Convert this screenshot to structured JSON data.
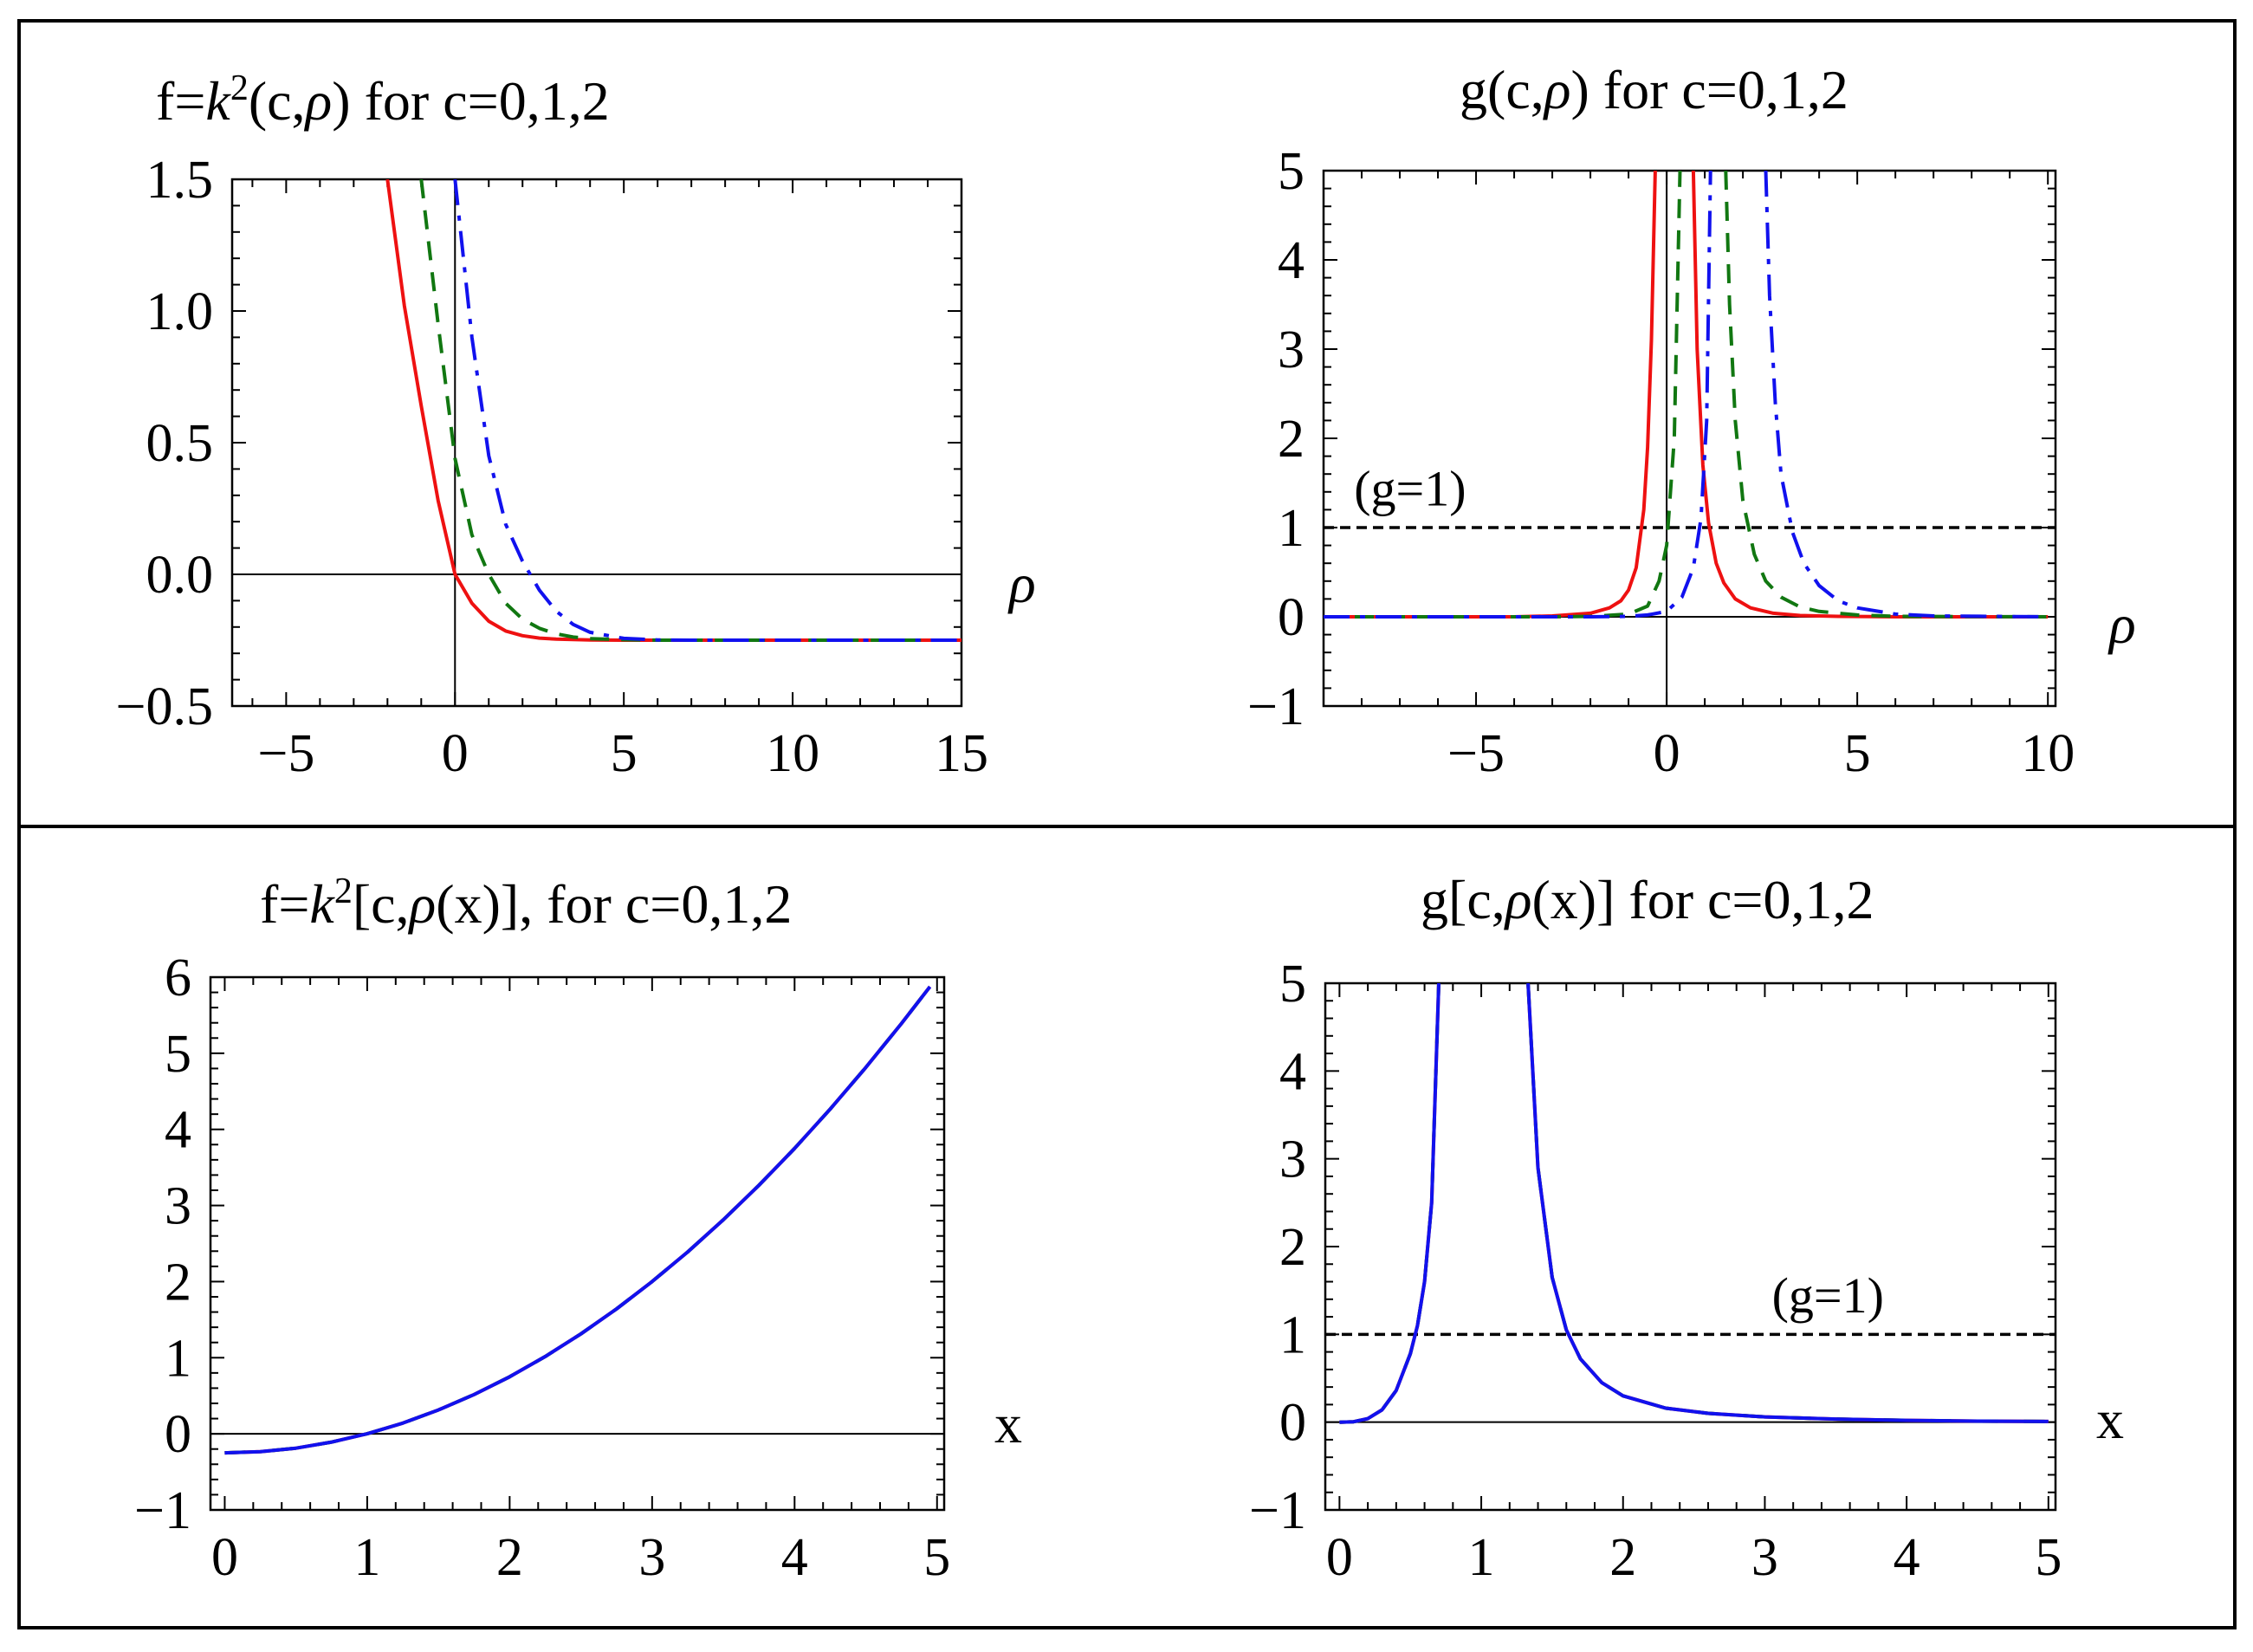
{
  "chart_data": [
    {
      "id": "p1",
      "type": "line",
      "title": "f=k²(c,ρ)  for c=0,1,2",
      "title_parts": {
        "lhs": "f=",
        "k": "k",
        "sup": "2",
        "rest": "(c,",
        "rho": "ρ",
        "tail": ")  for c=0,1,2"
      },
      "xlabel": "ρ",
      "xlim": [
        -6.6,
        15.0
      ],
      "ylim": [
        -0.5,
        1.5
      ],
      "xticks": [
        -5,
        0,
        5,
        10,
        15
      ],
      "xtick_labels": [
        "−5",
        "0",
        "5",
        "10",
        "15"
      ],
      "yticks": [
        -0.5,
        0.0,
        0.5,
        1.0,
        1.5
      ],
      "ytick_labels": [
        "−0.5",
        "0.0",
        "0.5",
        "1.0",
        "1.5"
      ],
      "series": [
        {
          "name": "c=0",
          "color": "#ee1111",
          "dash": "solid",
          "x": [
            -2.0,
            -1.5,
            -1.0,
            -0.5,
            0.0,
            0.5,
            1.0,
            1.5,
            2.0,
            2.5,
            3.0,
            4.0,
            5.0,
            7.0,
            10.0,
            15.0
          ],
          "values": [
            1.5,
            1.02,
            0.64,
            0.28,
            0.0,
            -0.11,
            -0.178,
            -0.215,
            -0.233,
            -0.242,
            -0.246,
            -0.249,
            -0.25,
            -0.25,
            -0.25,
            -0.25
          ]
        },
        {
          "name": "c=1",
          "color": "#117711",
          "dash": "dashed",
          "x": [
            -1.0,
            -0.5,
            0.0,
            0.5,
            1.0,
            1.5,
            2.0,
            2.5,
            3.0,
            3.5,
            4.0,
            5.0,
            6.0,
            8.0,
            10.0,
            15.0
          ],
          "values": [
            1.5,
            0.95,
            0.44,
            0.15,
            0.0,
            -0.11,
            -0.17,
            -0.205,
            -0.226,
            -0.238,
            -0.244,
            -0.248,
            -0.25,
            -0.25,
            -0.25,
            -0.25
          ]
        },
        {
          "name": "c=2",
          "color": "#1111ee",
          "dash": "dashdot",
          "x": [
            0.0,
            0.5,
            1.0,
            1.5,
            2.0,
            2.5,
            3.0,
            3.5,
            4.0,
            5.0,
            6.0,
            7.0,
            8.0,
            10.0,
            15.0
          ],
          "values": [
            1.5,
            0.9,
            0.45,
            0.19,
            0.05,
            -0.06,
            -0.14,
            -0.19,
            -0.22,
            -0.243,
            -0.249,
            -0.25,
            -0.25,
            -0.25,
            -0.25
          ]
        }
      ]
    },
    {
      "id": "p2",
      "type": "line",
      "title": "g(c,ρ) for c=0,1,2",
      "title_parts": {
        "lhs": "g(c,",
        "rho": "ρ",
        "tail": ") for c=0,1,2"
      },
      "xlabel": "ρ",
      "xlim": [
        -9.0,
        10.2
      ],
      "ylim": [
        -1,
        5
      ],
      "xticks": [
        -5,
        0,
        5,
        10
      ],
      "xtick_labels": [
        "−5",
        "0",
        "5",
        "10"
      ],
      "yticks": [
        -1,
        0,
        1,
        2,
        3,
        4,
        5
      ],
      "ytick_labels": [
        "−1",
        "0",
        "1",
        "2",
        "3",
        "4",
        "5"
      ],
      "reference_line": {
        "y": 1,
        "label": "(g=1)",
        "label_x": -8.2,
        "label_y": 1.25
      },
      "series": [
        {
          "name": "c=0",
          "color": "#ee1111",
          "dash": "solid",
          "x": [
            -9.0,
            -4.0,
            -3.0,
            -2.0,
            -1.5,
            -1.2,
            -1.0,
            -0.8,
            -0.6,
            -0.5,
            -0.4,
            -0.3
          ],
          "values": [
            0.0,
            0.0,
            0.01,
            0.04,
            0.1,
            0.18,
            0.3,
            0.55,
            1.2,
            1.9,
            3.1,
            5.0
          ],
          "x2": [
            0.7,
            0.8,
            0.95,
            1.1,
            1.3,
            1.5,
            1.8,
            2.2,
            2.8,
            3.5,
            4.5,
            6.0,
            10.0
          ],
          "values2": [
            5.0,
            3.0,
            1.7,
            1.05,
            0.6,
            0.38,
            0.2,
            0.1,
            0.04,
            0.015,
            0.005,
            0.0,
            0.0
          ]
        },
        {
          "name": "c=1",
          "color": "#117711",
          "dash": "dashed",
          "x": [
            -9.0,
            -3.0,
            -2.0,
            -1.0,
            -0.5,
            -0.2,
            0.0,
            0.2,
            0.35
          ],
          "values": [
            0.0,
            0.0,
            0.005,
            0.03,
            0.12,
            0.4,
            0.8,
            2.0,
            5.0
          ],
          "x2": [
            1.55,
            1.65,
            1.8,
            2.0,
            2.3,
            2.6,
            3.0,
            3.5,
            4.0,
            5.0,
            6.0,
            10.0
          ],
          "values2": [
            5.0,
            3.5,
            2.2,
            1.3,
            0.7,
            0.4,
            0.22,
            0.11,
            0.06,
            0.02,
            0.005,
            0.0
          ]
        },
        {
          "name": "c=2",
          "color": "#1111ee",
          "dash": "dashdot",
          "x": [
            -9.0,
            -2.0,
            -1.0,
            -0.5,
            0.0,
            0.4,
            0.7,
            0.9,
            1.05,
            1.15
          ],
          "values": [
            0.0,
            0.0,
            0.005,
            0.02,
            0.06,
            0.22,
            0.55,
            1.1,
            2.2,
            5.0
          ],
          "x2": [
            2.6,
            2.7,
            2.85,
            3.0,
            3.3,
            3.6,
            4.0,
            4.5,
            5.0,
            6.0,
            7.0,
            10.0
          ],
          "values2": [
            5.0,
            3.6,
            2.4,
            1.6,
            0.95,
            0.6,
            0.35,
            0.18,
            0.1,
            0.03,
            0.01,
            0.0
          ]
        }
      ]
    },
    {
      "id": "p3",
      "type": "line",
      "title": "f=k²[c,ρ(x)], for c=0,1,2",
      "title_parts": {
        "lhs": "f=",
        "k": "k",
        "sup": "2",
        "rest": "[c,",
        "rho": "ρ",
        "tail": "(x)], for c=0,1,2"
      },
      "xlabel": "x",
      "xlim": [
        -0.1,
        5.05
      ],
      "ylim": [
        -1,
        6
      ],
      "xticks": [
        0,
        1,
        2,
        3,
        4,
        5
      ],
      "xtick_labels": [
        "0",
        "1",
        "2",
        "3",
        "4",
        "5"
      ],
      "yticks": [
        -1,
        0,
        1,
        2,
        3,
        4,
        5,
        6
      ],
      "ytick_labels": [
        "−1",
        "0",
        "1",
        "2",
        "3",
        "4",
        "5",
        "6"
      ],
      "series": [
        {
          "name": "c=0",
          "color": "#ee1111",
          "dash": "solid",
          "x": [
            0,
            0.25,
            0.5,
            0.75,
            1,
            1.25,
            1.5,
            1.75,
            2,
            2.25,
            2.5,
            2.75,
            3,
            3.25,
            3.5,
            3.75,
            4,
            4.25,
            4.5,
            4.75,
            4.95
          ],
          "values": [
            -0.25,
            -0.234,
            -0.188,
            -0.109,
            0.0,
            0.141,
            0.313,
            0.516,
            0.75,
            1.016,
            1.313,
            1.641,
            2.0,
            2.391,
            2.813,
            3.266,
            3.75,
            4.266,
            4.813,
            5.391,
            5.875
          ]
        },
        {
          "name": "c=1",
          "color": "#117711",
          "dash": "dashed",
          "x": [
            0,
            0.25,
            0.5,
            0.75,
            1,
            1.25,
            1.5,
            1.75,
            2,
            2.25,
            2.5,
            2.75,
            3,
            3.25,
            3.5,
            3.75,
            4,
            4.25,
            4.5,
            4.75,
            4.95
          ],
          "values": [
            -0.25,
            -0.234,
            -0.188,
            -0.109,
            0.0,
            0.141,
            0.313,
            0.516,
            0.75,
            1.016,
            1.313,
            1.641,
            2.0,
            2.391,
            2.813,
            3.266,
            3.75,
            4.266,
            4.813,
            5.391,
            5.875
          ]
        },
        {
          "name": "c=2",
          "color": "#1111ee",
          "dash": "solid",
          "x": [
            0,
            0.25,
            0.5,
            0.75,
            1,
            1.25,
            1.5,
            1.75,
            2,
            2.25,
            2.5,
            2.75,
            3,
            3.25,
            3.5,
            3.75,
            4,
            4.25,
            4.5,
            4.75,
            4.95
          ],
          "values": [
            -0.25,
            -0.234,
            -0.188,
            -0.109,
            0.0,
            0.141,
            0.313,
            0.516,
            0.75,
            1.016,
            1.313,
            1.641,
            2.0,
            2.391,
            2.813,
            3.266,
            3.75,
            4.266,
            4.813,
            5.391,
            5.875
          ]
        }
      ]
    },
    {
      "id": "p4",
      "type": "line",
      "title": "g[c,ρ(x)] for c=0,1,2",
      "title_parts": {
        "lhs": "g[c,",
        "rho": "ρ",
        "tail": "(x)] for c=0,1,2"
      },
      "xlabel": "x",
      "xlim": [
        -0.1,
        5.05
      ],
      "ylim": [
        -1,
        5
      ],
      "xticks": [
        0,
        1,
        2,
        3,
        4,
        5
      ],
      "xtick_labels": [
        "0",
        "1",
        "2",
        "3",
        "4",
        "5"
      ],
      "yticks": [
        -1,
        0,
        1,
        2,
        3,
        4,
        5
      ],
      "ytick_labels": [
        "−1",
        "0",
        "1",
        "2",
        "3",
        "4",
        "5"
      ],
      "reference_line": {
        "y": 1,
        "label": "(g=1)",
        "label_x": 3.05,
        "label_y": 1.25
      },
      "series": [
        {
          "name": "c=0",
          "color": "#ee1111",
          "dash": "solid",
          "x": [
            0.0,
            0.1,
            0.2,
            0.3,
            0.4,
            0.5,
            0.55,
            0.6,
            0.65,
            0.7
          ],
          "values": [
            0.0,
            0.005,
            0.04,
            0.14,
            0.36,
            0.78,
            1.1,
            1.6,
            2.5,
            5.0
          ],
          "x2": [
            1.33,
            1.4,
            1.5,
            1.6,
            1.7,
            1.85,
            2.0,
            2.3,
            2.6,
            3.0,
            3.5,
            4.0,
            4.5,
            5.0
          ],
          "values2": [
            5.0,
            2.9,
            1.65,
            1.05,
            0.72,
            0.45,
            0.3,
            0.16,
            0.1,
            0.06,
            0.035,
            0.02,
            0.012,
            0.008
          ]
        },
        {
          "name": "c=1",
          "color": "#117711",
          "dash": "dashed",
          "x": [
            0.0,
            0.1,
            0.2,
            0.3,
            0.4,
            0.5,
            0.55,
            0.6,
            0.65,
            0.7
          ],
          "values": [
            0.0,
            0.005,
            0.04,
            0.14,
            0.36,
            0.78,
            1.1,
            1.6,
            2.5,
            5.0
          ],
          "x2": [
            1.33,
            1.4,
            1.5,
            1.6,
            1.7,
            1.85,
            2.0,
            2.3,
            2.6,
            3.0,
            3.5,
            4.0,
            4.5,
            5.0
          ],
          "values2": [
            5.0,
            2.9,
            1.65,
            1.05,
            0.72,
            0.45,
            0.3,
            0.16,
            0.1,
            0.06,
            0.035,
            0.02,
            0.012,
            0.008
          ]
        },
        {
          "name": "c=2",
          "color": "#1111ee",
          "dash": "solid",
          "x": [
            0.0,
            0.1,
            0.2,
            0.3,
            0.4,
            0.5,
            0.55,
            0.6,
            0.65,
            0.7
          ],
          "values": [
            0.0,
            0.005,
            0.04,
            0.14,
            0.36,
            0.78,
            1.1,
            1.6,
            2.5,
            5.0
          ],
          "x2": [
            1.33,
            1.4,
            1.5,
            1.6,
            1.7,
            1.85,
            2.0,
            2.3,
            2.6,
            3.0,
            3.5,
            4.0,
            4.5,
            5.0
          ],
          "values2": [
            5.0,
            2.9,
            1.65,
            1.05,
            0.72,
            0.45,
            0.3,
            0.16,
            0.1,
            0.06,
            0.035,
            0.02,
            0.012,
            0.008
          ]
        }
      ]
    }
  ]
}
